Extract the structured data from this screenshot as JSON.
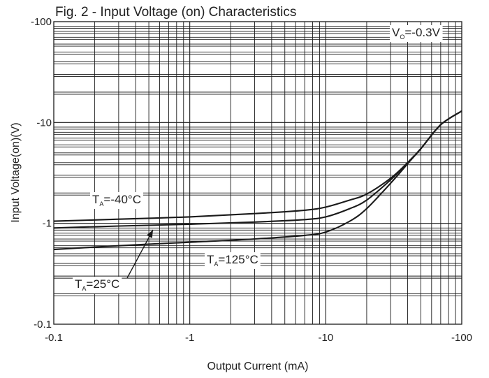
{
  "chart_data": {
    "type": "line",
    "title": "Fig. 2 - Input Voltage (on) Characteristics",
    "xlabel": "Output Current (mA)",
    "ylabel": "Input Voltage(on)(V)",
    "x_scale": "log",
    "y_scale": "log",
    "xlim": [
      -0.1,
      -100
    ],
    "ylim": [
      -0.1,
      -100
    ],
    "x_ticks": [
      "-0.1",
      "-1",
      "-10",
      "-100"
    ],
    "y_ticks": [
      "-100",
      "-10",
      "-1",
      "-0.1"
    ],
    "grid": true,
    "condition": {
      "prefix": "V",
      "subscript": "O",
      "suffix": "=-0.3V"
    },
    "series": [
      {
        "name_parts": {
          "prefix": "T",
          "subscript": "A",
          "suffix": "=-40°C"
        },
        "x": [
          -0.1,
          -0.3,
          -1,
          -3,
          -7,
          -10,
          -15,
          -20,
          -30,
          -40,
          -50,
          -70,
          -100
        ],
        "y": [
          -1.05,
          -1.1,
          -1.16,
          -1.25,
          -1.35,
          -1.45,
          -1.7,
          -1.95,
          -2.8,
          -4.0,
          -5.5,
          -9.5,
          -13.0
        ]
      },
      {
        "name_parts": {
          "prefix": "T",
          "subscript": "A",
          "suffix": "=25°C"
        },
        "x": [
          -0.1,
          -0.3,
          -1,
          -3,
          -7,
          -10,
          -15,
          -20,
          -30,
          -40,
          -50,
          -70,
          -100
        ],
        "y": [
          -0.9,
          -0.94,
          -0.98,
          -1.03,
          -1.09,
          -1.16,
          -1.4,
          -1.7,
          -2.7,
          -4.0,
          -5.5,
          -9.5,
          -13.0
        ]
      },
      {
        "name_parts": {
          "prefix": "T",
          "subscript": "A",
          "suffix": "=125°C"
        },
        "x": [
          -0.1,
          -0.3,
          -1,
          -3,
          -7,
          -10,
          -15,
          -20,
          -30,
          -40,
          -50,
          -70,
          -100
        ],
        "y": [
          -0.55,
          -0.6,
          -0.65,
          -0.7,
          -0.76,
          -0.82,
          -1.05,
          -1.4,
          -2.5,
          -3.9,
          -5.5,
          -9.5,
          -13.0
        ]
      }
    ]
  }
}
